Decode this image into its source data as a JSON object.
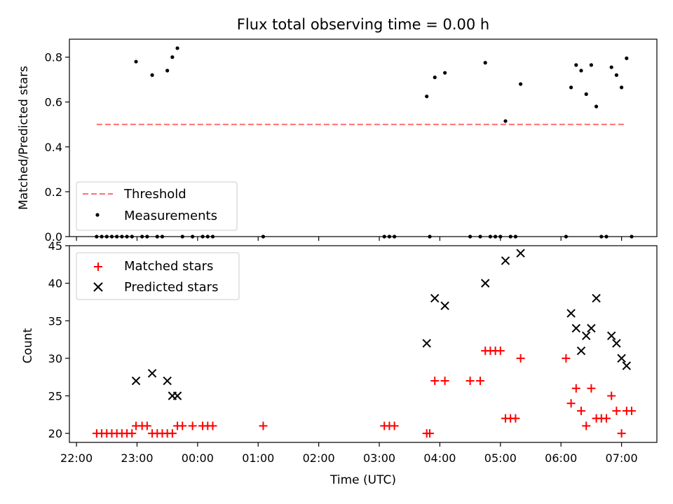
{
  "chart_data": [
    {
      "type": "scatter",
      "title": "Flux total observing time = 0.00 h",
      "xlabel": "",
      "ylabel": "Matched/Predicted stars",
      "ylim": [
        0,
        0.88
      ],
      "yticks": [
        0.0,
        0.2,
        0.4,
        0.6,
        0.8
      ],
      "ytick_labels": [
        "0.0",
        "0.2",
        "0.4",
        "0.6",
        "0.8"
      ],
      "legend_position": "lower-left",
      "legend": [
        "Threshold",
        "Measurements"
      ],
      "colors": {
        "threshold": "#ff6f6f",
        "measurements": "#000000"
      },
      "threshold": {
        "name": "Threshold",
        "y": 0.5,
        "x_start": "22:20",
        "x_end": "07:05"
      },
      "series": [
        {
          "name": "Measurements",
          "x": [
            "22:20",
            "22:25",
            "22:30",
            "22:35",
            "22:40",
            "22:45",
            "22:50",
            "22:55",
            "22:59",
            "23:05",
            "23:10",
            "23:15",
            "23:20",
            "23:25",
            "23:30",
            "23:35",
            "23:40",
            "23:45",
            "23:55",
            "00:05",
            "00:10",
            "00:15",
            "01:05",
            "03:05",
            "03:10",
            "03:15",
            "03:47",
            "03:50",
            "03:55",
            "04:05",
            "04:30",
            "04:40",
            "04:45",
            "04:50",
            "04:55",
            "05:00",
            "05:05",
            "05:10",
            "05:15",
            "05:20",
            "06:05",
            "06:10",
            "06:15",
            "06:20",
            "06:25",
            "06:30",
            "06:35",
            "06:40",
            "06:45",
            "06:50",
            "06:55",
            "07:00",
            "07:05",
            "07:10"
          ],
          "y": [
            0,
            0,
            0,
            0,
            0,
            0,
            0,
            0,
            0.78,
            0,
            0,
            0.72,
            0,
            0,
            0.74,
            0.8,
            0.84,
            0,
            0,
            0,
            0,
            0,
            0,
            0,
            0,
            0,
            0.625,
            0,
            0.71,
            0.73,
            0,
            0,
            0.775,
            0,
            0,
            0,
            0.515,
            0,
            0,
            0.68,
            0,
            0.665,
            0.765,
            0.74,
            0.635,
            0.765,
            0.58,
            0,
            0,
            0.755,
            0.72,
            0.665,
            0.795,
            0
          ]
        }
      ]
    },
    {
      "type": "scatter",
      "title": "",
      "xlabel": "Time (UTC)",
      "ylabel": "Count",
      "ylim": [
        18.8,
        45
      ],
      "yticks": [
        20,
        25,
        30,
        35,
        40,
        45
      ],
      "ytick_labels": [
        "20",
        "25",
        "30",
        "35",
        "40",
        "45"
      ],
      "xtick_labels": [
        "22:00",
        "23:00",
        "00:00",
        "01:00",
        "02:00",
        "03:00",
        "04:00",
        "05:00",
        "06:00",
        "07:00"
      ],
      "xlim": [
        "21:53",
        "07:35"
      ],
      "legend_position": "upper-left",
      "legend": [
        "Matched stars",
        "Predicted stars"
      ],
      "colors": {
        "matched": "#ff0000",
        "predicted": "#000000"
      },
      "series": [
        {
          "name": "Matched stars",
          "marker": "+",
          "x": [
            "22:20",
            "22:25",
            "22:30",
            "22:35",
            "22:40",
            "22:45",
            "22:50",
            "22:55",
            "22:59",
            "23:05",
            "23:10",
            "23:15",
            "23:20",
            "23:25",
            "23:30",
            "23:35",
            "23:40",
            "23:45",
            "23:55",
            "00:05",
            "00:10",
            "00:15",
            "01:05",
            "03:05",
            "03:10",
            "03:15",
            "03:47",
            "03:50",
            "03:55",
            "04:05",
            "04:30",
            "04:40",
            "04:45",
            "04:50",
            "04:55",
            "05:00",
            "05:05",
            "05:10",
            "05:15",
            "05:20",
            "06:05",
            "06:10",
            "06:15",
            "06:20",
            "06:25",
            "06:30",
            "06:35",
            "06:40",
            "06:45",
            "06:50",
            "06:55",
            "07:00",
            "07:05",
            "07:10"
          ],
          "y": [
            20,
            20,
            20,
            20,
            20,
            20,
            20,
            20,
            21,
            21,
            21,
            20,
            20,
            20,
            20,
            20,
            21,
            21,
            21,
            21,
            21,
            21,
            21,
            21,
            21,
            21,
            20,
            20,
            27,
            27,
            27,
            27,
            31,
            31,
            31,
            31,
            22,
            22,
            22,
            30,
            30,
            24,
            26,
            23,
            21,
            26,
            22,
            22,
            22,
            25,
            23,
            20,
            23,
            23
          ]
        },
        {
          "name": "Predicted stars",
          "marker": "x",
          "x": [
            "22:59",
            "23:15",
            "23:30",
            "23:35",
            "23:40",
            "03:47",
            "03:55",
            "04:05",
            "04:45",
            "05:05",
            "05:20",
            "06:10",
            "06:15",
            "06:20",
            "06:25",
            "06:30",
            "06:35",
            "06:50",
            "06:55",
            "07:00",
            "07:05"
          ],
          "y": [
            27,
            28,
            27,
            25,
            25,
            32,
            38,
            37,
            40,
            43,
            44,
            36,
            34,
            31,
            33,
            34,
            38,
            33,
            32,
            30,
            29
          ]
        }
      ]
    }
  ]
}
